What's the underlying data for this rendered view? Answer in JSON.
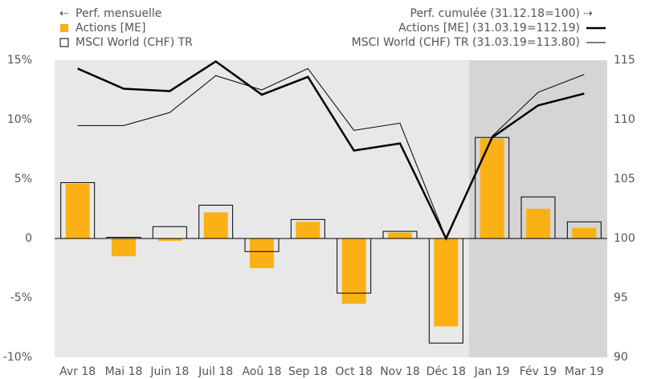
{
  "chart_data": {
    "type": "bar_line",
    "legend_title_left": "Perf. mensuelle",
    "legend_title_right": "Perf. cumulée (31.12.18=100)",
    "categories": [
      "Avr 18",
      "Mai 18",
      "Juin 18",
      "Juil 18",
      "Aoû 18",
      "Sep 18",
      "Oct 18",
      "Nov 18",
      "Déc 18",
      "Jan 19",
      "Fév 19",
      "Mar 19"
    ],
    "series": [
      {
        "name": "Actions [ME]",
        "type": "bar",
        "style": "filled",
        "color": "#fbb116",
        "values": [
          4.6,
          -1.5,
          -0.2,
          2.2,
          -2.5,
          1.4,
          -5.5,
          0.5,
          -7.4,
          8.4,
          2.5,
          0.9
        ]
      },
      {
        "name": "MSCI World (CHF) TR",
        "type": "bar",
        "style": "outline",
        "color": "#000000",
        "values": [
          4.7,
          0.1,
          1.0,
          2.8,
          -1.1,
          1.6,
          -4.6,
          0.6,
          -8.8,
          8.5,
          3.5,
          1.4
        ]
      },
      {
        "name": "Actions [ME] (31.03.19=112.19)",
        "type": "line",
        "axis": "y2",
        "color": "#000000",
        "width": 2.5,
        "values": [
          114.3,
          112.6,
          112.4,
          114.9,
          112.1,
          113.6,
          107.4,
          108.0,
          100.0,
          108.5,
          111.2,
          112.19
        ]
      },
      {
        "name": "MSCI World (CHF) TR (31.03.19=113.80)",
        "type": "line",
        "axis": "y2",
        "color": "#000000",
        "width": 1,
        "values": [
          109.5,
          109.5,
          110.6,
          113.7,
          112.5,
          114.3,
          109.1,
          109.7,
          100.0,
          108.6,
          112.3,
          113.8
        ]
      }
    ],
    "ylim": [
      -10,
      15
    ],
    "yticks": [
      {
        "value": -10,
        "label": "-10%"
      },
      {
        "value": -5,
        "label": "-5%"
      },
      0,
      {
        "value": 5,
        "label": "5%"
      },
      {
        "value": 10,
        "label": "10%"
      },
      {
        "value": 15,
        "label": "15%"
      }
    ],
    "y2lim": [
      90,
      115
    ],
    "y2ticks": [
      90,
      95,
      100,
      105,
      110,
      115
    ]
  }
}
